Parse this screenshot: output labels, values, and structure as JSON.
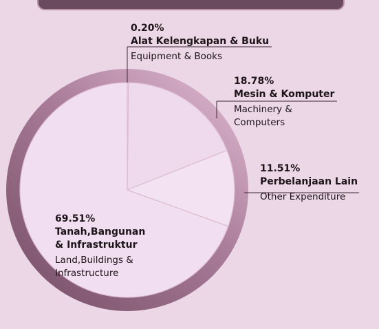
{
  "chart_data": {
    "type": "pie",
    "categories": [
      "Alat Kelengkapan & Buku",
      "Mesin & Komputer",
      "Perbelanjaan Lain",
      "Tanah,Bangunan & Infrastruktur"
    ],
    "categories_en": [
      "Equipment & Books",
      "Machinery & Computers",
      "Other Expenditure",
      "Land,Buildings & Infrastructure"
    ],
    "values": [
      0.2,
      18.78,
      11.51,
      69.51
    ],
    "value_labels": [
      "0.20%",
      "18.78%",
      "11.51%",
      "69.51%"
    ],
    "colors": [
      "#f2dff0",
      "#efd9ec",
      "#f3e2f1",
      "#f1def0"
    ]
  }
}
